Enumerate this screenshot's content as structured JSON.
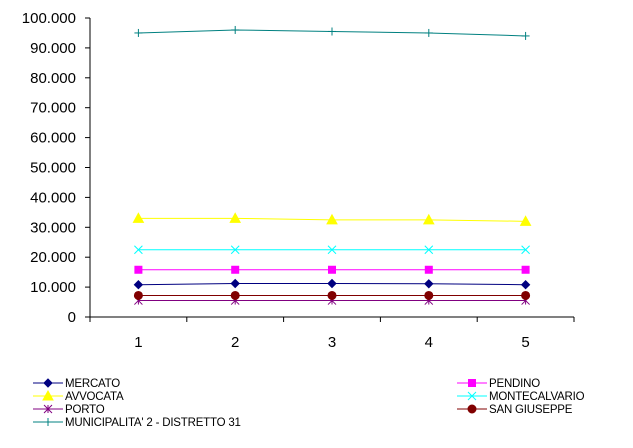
{
  "chart_data": {
    "type": "line",
    "x": [
      1,
      2,
      3,
      4,
      5
    ],
    "xticks": [
      "1",
      "2",
      "3",
      "4",
      "5"
    ],
    "ylim": [
      0,
      100000
    ],
    "yticks": [
      0,
      10000,
      20000,
      30000,
      40000,
      50000,
      60000,
      70000,
      80000,
      90000,
      100000
    ],
    "ytick_labels": [
      "0",
      "10.000",
      "20.000",
      "30.000",
      "40.000",
      "50.000",
      "60.000",
      "70.000",
      "80.000",
      "90.000",
      "100.000"
    ],
    "grid": false,
    "legend_position": "bottom",
    "series": [
      {
        "name": "MERCATO",
        "color": "#000080",
        "marker": "diamond",
        "values": [
          10800,
          11200,
          11200,
          11100,
          10800
        ]
      },
      {
        "name": "PENDINO",
        "color": "#FF00FF",
        "marker": "square",
        "values": [
          15800,
          15800,
          15800,
          15800,
          15800
        ]
      },
      {
        "name": "AVVOCATA",
        "color": "#FFFF00",
        "marker": "triangle",
        "values": [
          33000,
          33000,
          32500,
          32500,
          32000
        ]
      },
      {
        "name": "MONTECALVARIO",
        "color": "#00FFFF",
        "marker": "x",
        "values": [
          22500,
          22500,
          22500,
          22500,
          22500
        ]
      },
      {
        "name": "PORTO",
        "color": "#800080",
        "marker": "asterisk",
        "values": [
          5500,
          5500,
          5500,
          5500,
          5500
        ]
      },
      {
        "name": "SAN GIUSEPPE",
        "color": "#800000",
        "marker": "circle",
        "values": [
          7200,
          7200,
          7200,
          7200,
          7200
        ]
      },
      {
        "name": "MUNICIPALITA' 2 - DISTRETTO 31",
        "color": "#008080",
        "marker": "plus",
        "values": [
          95000,
          96000,
          95500,
          95000,
          94000
        ]
      }
    ]
  }
}
